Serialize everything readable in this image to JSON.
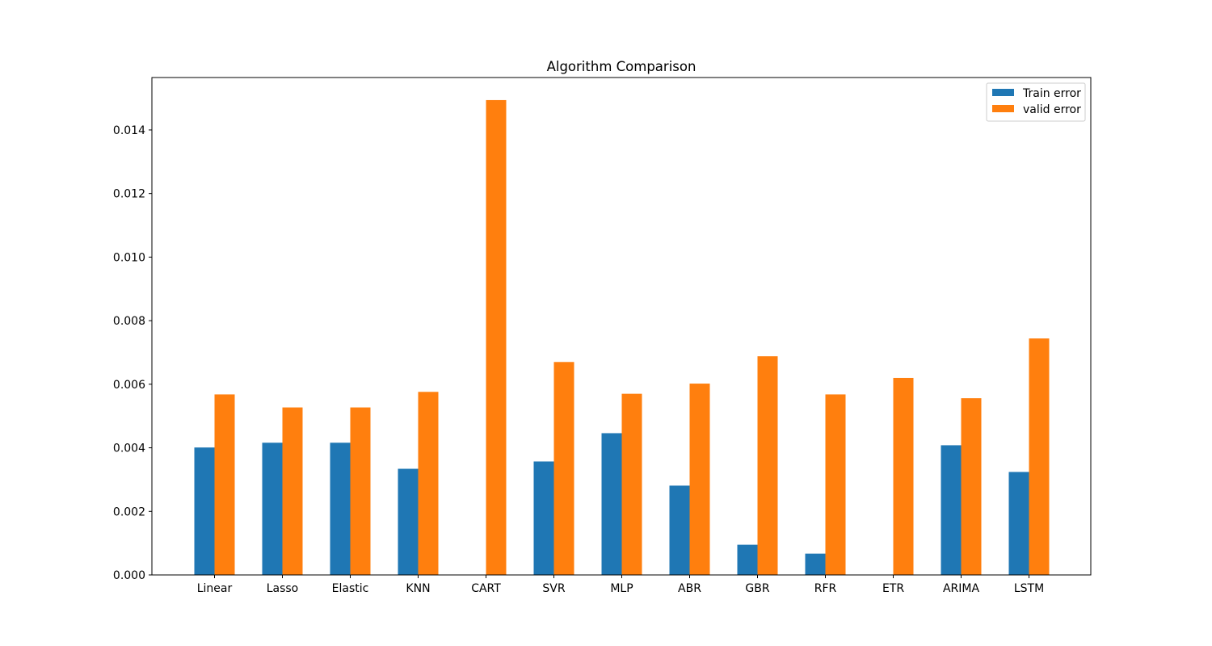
{
  "chart_data": {
    "type": "bar",
    "title": "Algorithm Comparison",
    "xlabel": "",
    "ylabel": "",
    "categories": [
      "Linear",
      "Lasso",
      "Elastic",
      "KNN",
      "CART",
      "SVR",
      "MLP",
      "ABR",
      "GBR",
      "RFR",
      "ETR",
      "ARIMA",
      "LSTM"
    ],
    "series": [
      {
        "name": "Train error",
        "color": "#1f77b4",
        "values": [
          0.00401,
          0.00416,
          0.00416,
          0.00334,
          0.0,
          0.00357,
          0.00446,
          0.00281,
          0.00095,
          0.00067,
          0.0,
          0.00408,
          0.00324
        ]
      },
      {
        "name": "valid error",
        "color": "#ff7f0e",
        "values": [
          0.00568,
          0.00527,
          0.00527,
          0.00576,
          0.01494,
          0.0067,
          0.0057,
          0.00602,
          0.00688,
          0.00568,
          0.0062,
          0.00556,
          0.00744
        ]
      }
    ],
    "ylim": [
      0,
      0.01565
    ],
    "yticks": [
      "0.000",
      "0.002",
      "0.004",
      "0.006",
      "0.008",
      "0.010",
      "0.012",
      "0.014"
    ],
    "grid": false,
    "legend_position": "top-right"
  }
}
